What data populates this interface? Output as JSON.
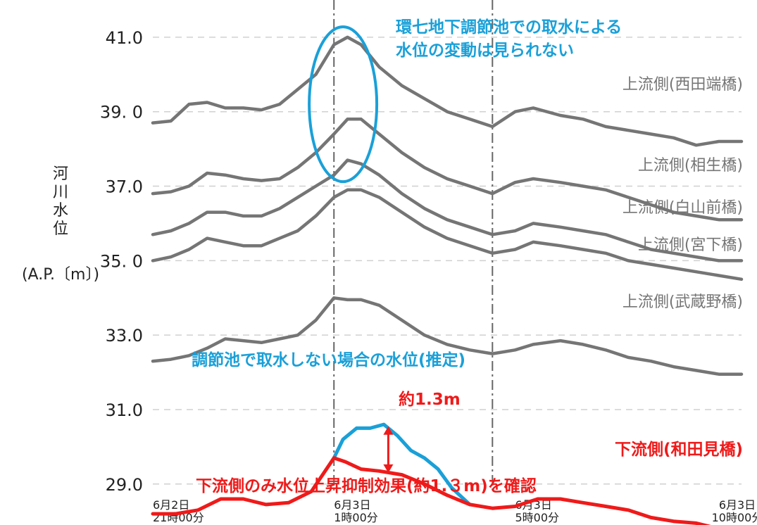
{
  "chart_data": {
    "type": "line",
    "ylabel_chars": [
      "河",
      "川",
      "水",
      "位"
    ],
    "ylabel_unit": "(A.P.〔m〕)",
    "ylim": [
      27.9,
      42.0
    ],
    "yticks": [
      {
        "value": 41.0,
        "label": "41.0"
      },
      {
        "value": 39.0,
        "label": "39. 0"
      },
      {
        "value": 37.0,
        "label": "37.0"
      },
      {
        "value": 35.0,
        "label": "35. 0"
      },
      {
        "value": 33.0,
        "label": "33.0"
      },
      {
        "value": 31.0,
        "label": "31.0"
      },
      {
        "value": 29.0,
        "label": "29.0"
      }
    ],
    "xlim": [
      0,
      13
    ],
    "xticks": [
      {
        "x": 0,
        "line1": "6月2日",
        "line2": "21時00分"
      },
      {
        "x": 4,
        "line1": "6月3日",
        "line2": "1時00分"
      },
      {
        "x": 8,
        "line1": "6月3日",
        "line2": "5時00分"
      },
      {
        "x": 13,
        "line1": "6月3日",
        "line2": "10時00分"
      }
    ],
    "vlines": [
      {
        "x": 4
      },
      {
        "x": 7.5
      }
    ],
    "grid": true,
    "series": [
      {
        "name": "上流側(西田端橋)",
        "color": "#757575",
        "points": [
          [
            0,
            38.7
          ],
          [
            0.4,
            38.75
          ],
          [
            0.8,
            39.2
          ],
          [
            1.2,
            39.25
          ],
          [
            1.6,
            39.1
          ],
          [
            2.0,
            39.1
          ],
          [
            2.4,
            39.05
          ],
          [
            2.8,
            39.2
          ],
          [
            3.2,
            39.6
          ],
          [
            3.6,
            40.0
          ],
          [
            4.0,
            40.8
          ],
          [
            4.3,
            41.0
          ],
          [
            4.6,
            40.8
          ],
          [
            5.0,
            40.2
          ],
          [
            5.5,
            39.7
          ],
          [
            6.0,
            39.35
          ],
          [
            6.5,
            39.0
          ],
          [
            7.0,
            38.8
          ],
          [
            7.5,
            38.6
          ],
          [
            8.0,
            39.0
          ],
          [
            8.4,
            39.1
          ],
          [
            9.0,
            38.9
          ],
          [
            9.5,
            38.8
          ],
          [
            10.0,
            38.6
          ],
          [
            10.5,
            38.5
          ],
          [
            11.0,
            38.4
          ],
          [
            11.5,
            38.3
          ],
          [
            12.0,
            38.1
          ],
          [
            12.5,
            38.2
          ],
          [
            13.0,
            38.2
          ]
        ]
      },
      {
        "name": "上流側(相生橋)",
        "color": "#757575",
        "points": [
          [
            0,
            36.8
          ],
          [
            0.4,
            36.85
          ],
          [
            0.8,
            37.0
          ],
          [
            1.2,
            37.35
          ],
          [
            1.6,
            37.3
          ],
          [
            2.0,
            37.2
          ],
          [
            2.4,
            37.15
          ],
          [
            2.8,
            37.2
          ],
          [
            3.2,
            37.5
          ],
          [
            3.6,
            37.9
          ],
          [
            4.0,
            38.4
          ],
          [
            4.3,
            38.8
          ],
          [
            4.6,
            38.8
          ],
          [
            5.0,
            38.4
          ],
          [
            5.5,
            37.9
          ],
          [
            6.0,
            37.5
          ],
          [
            6.5,
            37.2
          ],
          [
            7.0,
            37.0
          ],
          [
            7.5,
            36.8
          ],
          [
            8.0,
            37.1
          ],
          [
            8.4,
            37.2
          ],
          [
            9.0,
            37.1
          ],
          [
            9.5,
            37.0
          ],
          [
            10.0,
            36.9
          ],
          [
            10.5,
            36.7
          ],
          [
            11.0,
            36.5
          ],
          [
            11.5,
            36.3
          ],
          [
            12.0,
            36.2
          ],
          [
            12.5,
            36.1
          ],
          [
            13.0,
            36.1
          ]
        ]
      },
      {
        "name": "上流側(白山前橋)",
        "color": "#757575",
        "points": [
          [
            0,
            35.7
          ],
          [
            0.4,
            35.8
          ],
          [
            0.8,
            36.0
          ],
          [
            1.2,
            36.3
          ],
          [
            1.6,
            36.3
          ],
          [
            2.0,
            36.2
          ],
          [
            2.4,
            36.2
          ],
          [
            2.8,
            36.4
          ],
          [
            3.2,
            36.7
          ],
          [
            3.6,
            37.0
          ],
          [
            4.0,
            37.3
          ],
          [
            4.3,
            37.7
          ],
          [
            4.6,
            37.6
          ],
          [
            5.0,
            37.3
          ],
          [
            5.5,
            36.8
          ],
          [
            6.0,
            36.4
          ],
          [
            6.5,
            36.1
          ],
          [
            7.0,
            35.9
          ],
          [
            7.5,
            35.7
          ],
          [
            8.0,
            35.8
          ],
          [
            8.4,
            36.0
          ],
          [
            9.0,
            35.9
          ],
          [
            9.5,
            35.8
          ],
          [
            10.0,
            35.7
          ],
          [
            10.5,
            35.5
          ],
          [
            11.0,
            35.3
          ],
          [
            11.5,
            35.2
          ],
          [
            12.0,
            35.1
          ],
          [
            12.5,
            35.0
          ],
          [
            13.0,
            35.0
          ]
        ]
      },
      {
        "name": "上流側(宮下橋)",
        "color": "#757575",
        "points": [
          [
            0,
            35.0
          ],
          [
            0.4,
            35.1
          ],
          [
            0.8,
            35.3
          ],
          [
            1.2,
            35.6
          ],
          [
            1.6,
            35.5
          ],
          [
            2.0,
            35.4
          ],
          [
            2.4,
            35.4
          ],
          [
            2.8,
            35.6
          ],
          [
            3.2,
            35.8
          ],
          [
            3.6,
            36.2
          ],
          [
            4.0,
            36.7
          ],
          [
            4.3,
            36.9
          ],
          [
            4.6,
            36.9
          ],
          [
            5.0,
            36.7
          ],
          [
            5.5,
            36.3
          ],
          [
            6.0,
            35.9
          ],
          [
            6.5,
            35.6
          ],
          [
            7.0,
            35.4
          ],
          [
            7.5,
            35.2
          ],
          [
            8.0,
            35.3
          ],
          [
            8.4,
            35.5
          ],
          [
            9.0,
            35.4
          ],
          [
            9.5,
            35.3
          ],
          [
            10.0,
            35.2
          ],
          [
            10.5,
            35.0
          ],
          [
            11.0,
            34.9
          ],
          [
            11.5,
            34.8
          ],
          [
            12.0,
            34.7
          ],
          [
            12.5,
            34.6
          ],
          [
            13.0,
            34.5
          ]
        ]
      },
      {
        "name": "上流側(武蔵野橋)",
        "color": "#757575",
        "points": [
          [
            0,
            32.3
          ],
          [
            0.4,
            32.35
          ],
          [
            0.8,
            32.45
          ],
          [
            1.2,
            32.65
          ],
          [
            1.6,
            32.9
          ],
          [
            2.0,
            32.85
          ],
          [
            2.4,
            32.8
          ],
          [
            2.8,
            32.9
          ],
          [
            3.2,
            33.0
          ],
          [
            3.6,
            33.4
          ],
          [
            4.0,
            34.0
          ],
          [
            4.3,
            33.95
          ],
          [
            4.6,
            33.95
          ],
          [
            5.0,
            33.8
          ],
          [
            5.5,
            33.4
          ],
          [
            6.0,
            33.0
          ],
          [
            6.5,
            32.75
          ],
          [
            7.0,
            32.6
          ],
          [
            7.5,
            32.5
          ],
          [
            8.0,
            32.6
          ],
          [
            8.4,
            32.75
          ],
          [
            9.0,
            32.85
          ],
          [
            9.5,
            32.75
          ],
          [
            10.0,
            32.6
          ],
          [
            10.5,
            32.4
          ],
          [
            11.0,
            32.3
          ],
          [
            11.5,
            32.15
          ],
          [
            12.0,
            32.05
          ],
          [
            12.5,
            31.95
          ],
          [
            13.0,
            31.95
          ]
        ]
      },
      {
        "name": "下流側(和田見橋)",
        "color": "#ef1a1a",
        "points": [
          [
            0,
            28.2
          ],
          [
            0.5,
            28.2
          ],
          [
            1.0,
            28.3
          ],
          [
            1.5,
            28.6
          ],
          [
            2.0,
            28.6
          ],
          [
            2.5,
            28.45
          ],
          [
            3.0,
            28.5
          ],
          [
            3.5,
            28.8
          ],
          [
            4.0,
            29.7
          ],
          [
            4.25,
            29.6
          ],
          [
            4.6,
            29.4
          ],
          [
            5.0,
            29.35
          ],
          [
            5.5,
            29.25
          ],
          [
            6.0,
            29.0
          ],
          [
            6.5,
            28.7
          ],
          [
            7.0,
            28.45
          ],
          [
            7.5,
            28.35
          ],
          [
            8.0,
            28.4
          ],
          [
            8.5,
            28.6
          ],
          [
            9.0,
            28.6
          ],
          [
            9.5,
            28.5
          ],
          [
            10.0,
            28.4
          ],
          [
            10.5,
            28.3
          ],
          [
            11.0,
            28.1
          ],
          [
            11.5,
            28.0
          ],
          [
            12.0,
            27.95
          ],
          [
            12.5,
            27.8
          ],
          [
            13.0,
            27.8
          ]
        ]
      },
      {
        "color": "#1aa0d8",
        "points": [
          [
            4.0,
            29.7
          ],
          [
            4.2,
            30.2
          ],
          [
            4.5,
            30.5
          ],
          [
            4.8,
            30.5
          ],
          [
            5.1,
            30.6
          ],
          [
            5.4,
            30.3
          ],
          [
            5.7,
            29.9
          ],
          [
            6.0,
            29.7
          ],
          [
            6.3,
            29.4
          ],
          [
            6.6,
            28.9
          ],
          [
            7.0,
            28.45
          ]
        ]
      }
    ],
    "annotations": {
      "top_note_line1": "環七地下調節池での取水による",
      "top_note_line2": "水位の変動は見られない",
      "estimate_note": "調節池で取水しない場合の水位(推定)",
      "delta_label": "約1.3m",
      "bottom_note": "下流側のみ水位上昇抑制効果(約1.３m)を確認"
    }
  }
}
